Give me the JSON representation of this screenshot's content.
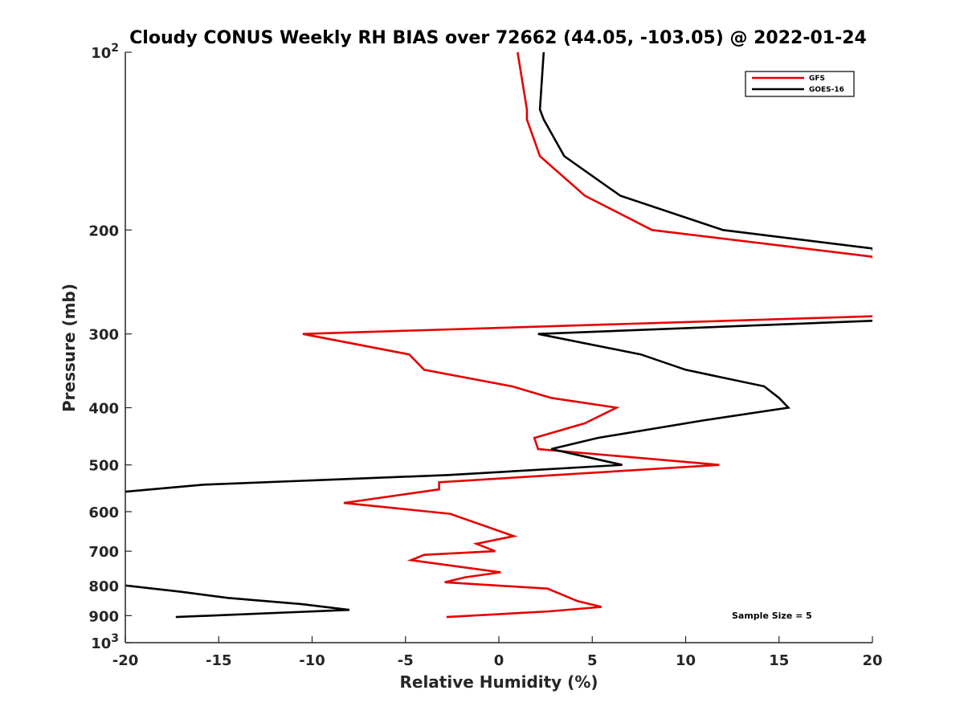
{
  "chart_data": {
    "type": "line",
    "title": "Cloudy CONUS Weekly RH BIAS over 72662 (44.05, -103.05) @ 2022-01-24",
    "xlabel": "Relative Humidity (%)",
    "ylabel": "Pressure (mb)",
    "xlim": [
      -20,
      20
    ],
    "ylim": [
      100,
      1000
    ],
    "yscale": "log",
    "y_reversed": true,
    "grid": false,
    "legend_position": "top-right",
    "x_ticks": [
      "-20",
      "-15",
      "-10",
      "-5",
      "0",
      "5",
      "10",
      "15",
      "20"
    ],
    "x_tick_values": [
      -20,
      -15,
      -10,
      -5,
      0,
      5,
      10,
      15,
      20
    ],
    "y_ticks": [
      {
        "value": 100,
        "base": "10",
        "exp": "2"
      },
      {
        "value": 200,
        "label": "200"
      },
      {
        "value": 300,
        "label": "300"
      },
      {
        "value": 400,
        "label": "400"
      },
      {
        "value": 500,
        "label": "500"
      },
      {
        "value": 600,
        "label": "600"
      },
      {
        "value": 700,
        "label": "700"
      },
      {
        "value": 800,
        "label": "800"
      },
      {
        "value": 900,
        "label": "900"
      },
      {
        "value": 1000,
        "base": "10",
        "exp": "3"
      }
    ],
    "annotation": "Sample Size = 5",
    "series": [
      {
        "name": "GFS",
        "color": "#e60000",
        "points": [
          [
            1.0,
            100
          ],
          [
            1.5,
            125
          ],
          [
            1.5,
            130
          ],
          [
            2.2,
            150
          ],
          [
            4.6,
            175
          ],
          [
            8.2,
            200
          ],
          [
            20.0,
            222
          ],
          [
            21.0,
            260
          ],
          [
            20.0,
            280
          ],
          [
            -10.5,
            300
          ],
          [
            -4.8,
            325
          ],
          [
            -4.0,
            345
          ],
          [
            0.7,
            368
          ],
          [
            2.8,
            385
          ],
          [
            6.3,
            400
          ],
          [
            4.6,
            425
          ],
          [
            1.9,
            450
          ],
          [
            2.1,
            470
          ],
          [
            11.8,
            500
          ],
          [
            -3.2,
            535
          ],
          [
            -3.2,
            550
          ],
          [
            -8.3,
            580
          ],
          [
            -2.6,
            605
          ],
          [
            0.8,
            660
          ],
          [
            -1.2,
            680
          ],
          [
            -0.2,
            700
          ],
          [
            -4.0,
            710
          ],
          [
            -4.7,
            725
          ],
          [
            0.1,
            760
          ],
          [
            -1.8,
            775
          ],
          [
            -2.9,
            790
          ],
          [
            2.6,
            810
          ],
          [
            4.2,
            850
          ],
          [
            5.5,
            870
          ],
          [
            2.7,
            885
          ],
          [
            -2.8,
            905
          ]
        ]
      },
      {
        "name": "GOES-16",
        "color": "#000000",
        "points": [
          [
            2.4,
            100
          ],
          [
            2.2,
            125
          ],
          [
            2.4,
            130
          ],
          [
            3.5,
            150
          ],
          [
            6.5,
            175
          ],
          [
            12.0,
            200
          ],
          [
            20.0,
            215
          ],
          [
            21.0,
            265
          ],
          [
            20.0,
            285
          ],
          [
            2.1,
            300
          ],
          [
            7.6,
            325
          ],
          [
            10.0,
            345
          ],
          [
            14.2,
            368
          ],
          [
            15.0,
            385
          ],
          [
            15.5,
            400
          ],
          [
            11.0,
            420
          ],
          [
            5.3,
            450
          ],
          [
            2.8,
            470
          ],
          [
            4.1,
            480
          ],
          [
            6.6,
            500
          ],
          [
            -2.7,
            520
          ],
          [
            -15.8,
            540
          ],
          [
            -20.0,
            555
          ],
          [
            -21.0,
            560
          ],
          [
            -21.0,
            790
          ],
          [
            -20.0,
            800
          ],
          [
            -17.0,
            820
          ],
          [
            -14.5,
            840
          ],
          [
            -10.6,
            860
          ],
          [
            -8.0,
            880
          ],
          [
            -17.3,
            905
          ]
        ]
      }
    ]
  }
}
